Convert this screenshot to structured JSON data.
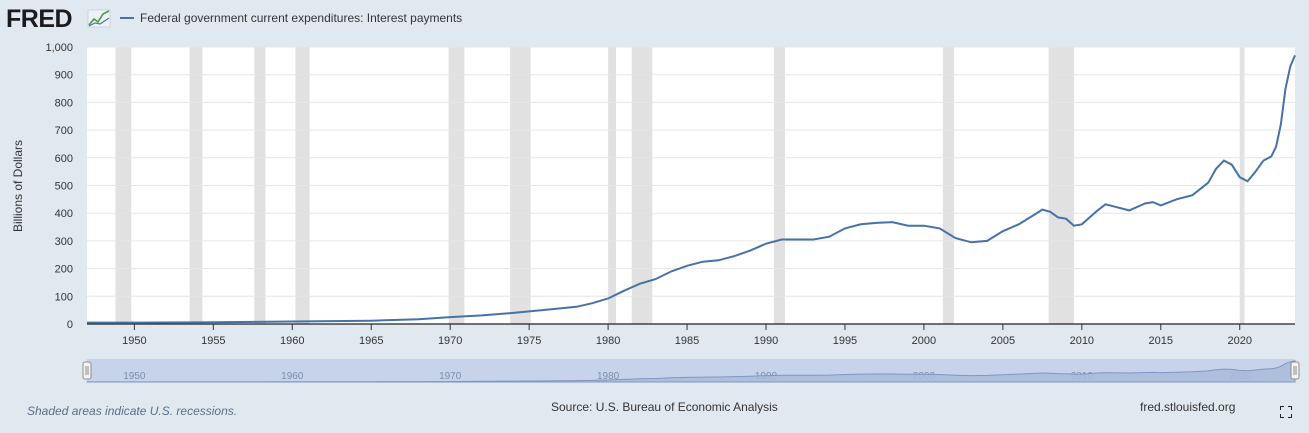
{
  "brand": {
    "logo_text": "FRED",
    "logo_color": "#1b1b1b",
    "accent": "#4572a7"
  },
  "legend": {
    "series_label": "Federal government current expenditures: Interest payments",
    "line_color": "#4572a7"
  },
  "footer": {
    "note": "Shaded areas indicate U.S. recessions.",
    "source": "Source: U.S. Bureau of Economic Analysis",
    "site": "fred.stlouisfed.org"
  },
  "colors": {
    "page_bg": "#e1e9f0",
    "plot_bg": "#ffffff",
    "grid": "#e6e6e6",
    "recession": "#e1e1e1",
    "navigator_bg": "#c7d3ea",
    "navigator_fill": "#a9bbdc",
    "navigator_line": "#7f97c4"
  },
  "chart_data": {
    "type": "line",
    "title": "Federal government current expenditures: Interest payments",
    "xlabel": "",
    "ylabel": "Billions of Dollars",
    "xlim": [
      1947,
      2023.5
    ],
    "ylim": [
      0,
      1000
    ],
    "x_ticks": [
      1950,
      1955,
      1960,
      1965,
      1970,
      1975,
      1980,
      1985,
      1990,
      1995,
      2000,
      2005,
      2010,
      2015,
      2020
    ],
    "y_ticks": [
      0,
      100,
      200,
      300,
      400,
      500,
      600,
      700,
      800,
      900,
      1000
    ],
    "y_tick_labels": [
      "0",
      "100",
      "200",
      "300",
      "400",
      "500",
      "600",
      "700",
      "800",
      "900",
      "1,000"
    ],
    "grid": true,
    "recessions": [
      [
        1948.8,
        1949.8
      ],
      [
        1953.5,
        1954.3
      ],
      [
        1957.6,
        1958.3
      ],
      [
        1960.2,
        1961.1
      ],
      [
        1969.9,
        1970.9
      ],
      [
        1973.8,
        1975.1
      ],
      [
        1980.0,
        1980.5
      ],
      [
        1981.5,
        1982.8
      ],
      [
        1990.5,
        1991.2
      ],
      [
        2001.2,
        2001.9
      ],
      [
        2007.9,
        2009.5
      ],
      [
        2020.0,
        2020.3
      ]
    ],
    "series": [
      {
        "name": "Federal government current expenditures: Interest payments",
        "x": [
          1947,
          1950,
          1955,
          1960,
          1965,
          1968,
          1970,
          1972,
          1974,
          1976,
          1978,
          1979,
          1980,
          1981,
          1982,
          1983,
          1984,
          1985,
          1986,
          1987,
          1988,
          1989,
          1990,
          1991,
          1992,
          1993,
          1994,
          1995,
          1996,
          1997,
          1998,
          1999,
          2000,
          2001,
          2002,
          2003,
          2004,
          2005,
          2006,
          2007,
          2007.5,
          2008,
          2008.5,
          2009,
          2009.5,
          2010,
          2011,
          2011.5,
          2012,
          2013,
          2014,
          2014.5,
          2015,
          2016,
          2017,
          2018,
          2018.5,
          2019,
          2019.5,
          2020,
          2020.5,
          2021,
          2021.5,
          2022,
          2022.3,
          2022.6,
          2022.9,
          2023.2,
          2023.5
        ],
        "values": [
          5,
          5,
          6,
          9,
          12,
          17,
          25,
          31,
          40,
          51,
          62,
          75,
          92,
          120,
          145,
          162,
          190,
          210,
          225,
          230,
          245,
          265,
          290,
          305,
          305,
          305,
          315,
          345,
          360,
          365,
          368,
          355,
          355,
          345,
          310,
          295,
          300,
          335,
          360,
          395,
          413,
          405,
          385,
          380,
          355,
          360,
          410,
          432,
          425,
          410,
          435,
          440,
          428,
          450,
          465,
          510,
          560,
          590,
          575,
          530,
          515,
          550,
          590,
          605,
          640,
          720,
          850,
          930,
          970
        ]
      }
    ],
    "navigator": {
      "tick_labels": [
        "1950",
        "1960",
        "1970",
        "1980",
        "1990",
        "2000",
        "2010",
        "2020"
      ],
      "tick_years": [
        1950,
        1960,
        1970,
        1980,
        1990,
        2000,
        2010,
        2020
      ]
    }
  }
}
